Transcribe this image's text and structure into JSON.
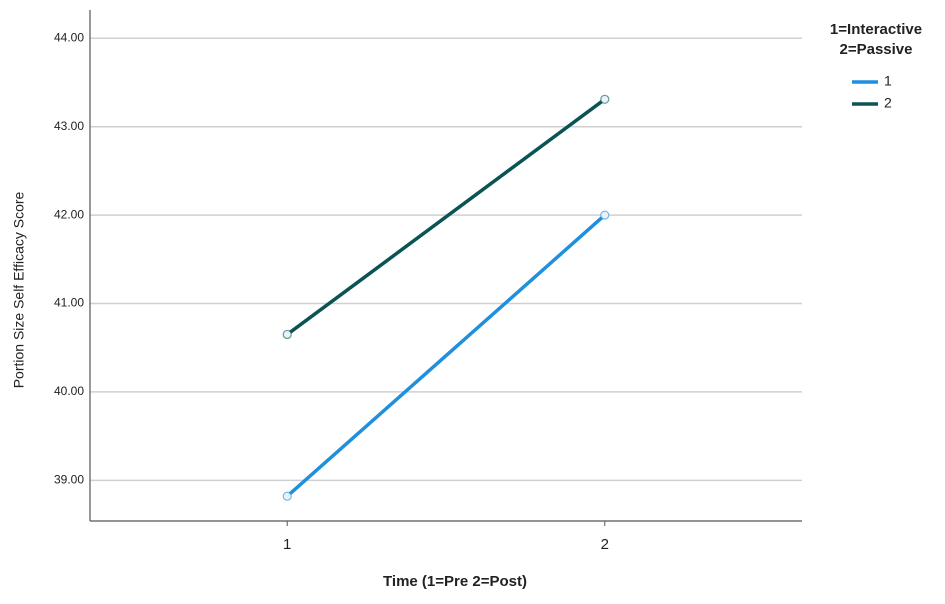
{
  "chart_data": {
    "type": "line",
    "x_label": "Time (1=Pre 2=Post)",
    "y_label": "Portion Size Self Efficacy Score",
    "legend_title": [
      "1=Interactive",
      "2=Passive"
    ],
    "legend_position": "right",
    "categories": [
      "1",
      "2"
    ],
    "series": [
      {
        "name": "1",
        "color": "#1f8fde",
        "values": [
          38.82,
          42.0
        ]
      },
      {
        "name": "2",
        "color": "#0b5454",
        "values": [
          40.65,
          43.31
        ]
      }
    ],
    "ylim": [
      38.54,
      44.32
    ],
    "yticks": [
      {
        "value": 39,
        "label": "39.00"
      },
      {
        "value": 40,
        "label": "40.00"
      },
      {
        "value": 41,
        "label": "41.00"
      },
      {
        "value": 42,
        "label": "42.00"
      },
      {
        "value": 43,
        "label": "43.00"
      },
      {
        "value": 44,
        "label": "44.00"
      }
    ],
    "grid": true
  }
}
